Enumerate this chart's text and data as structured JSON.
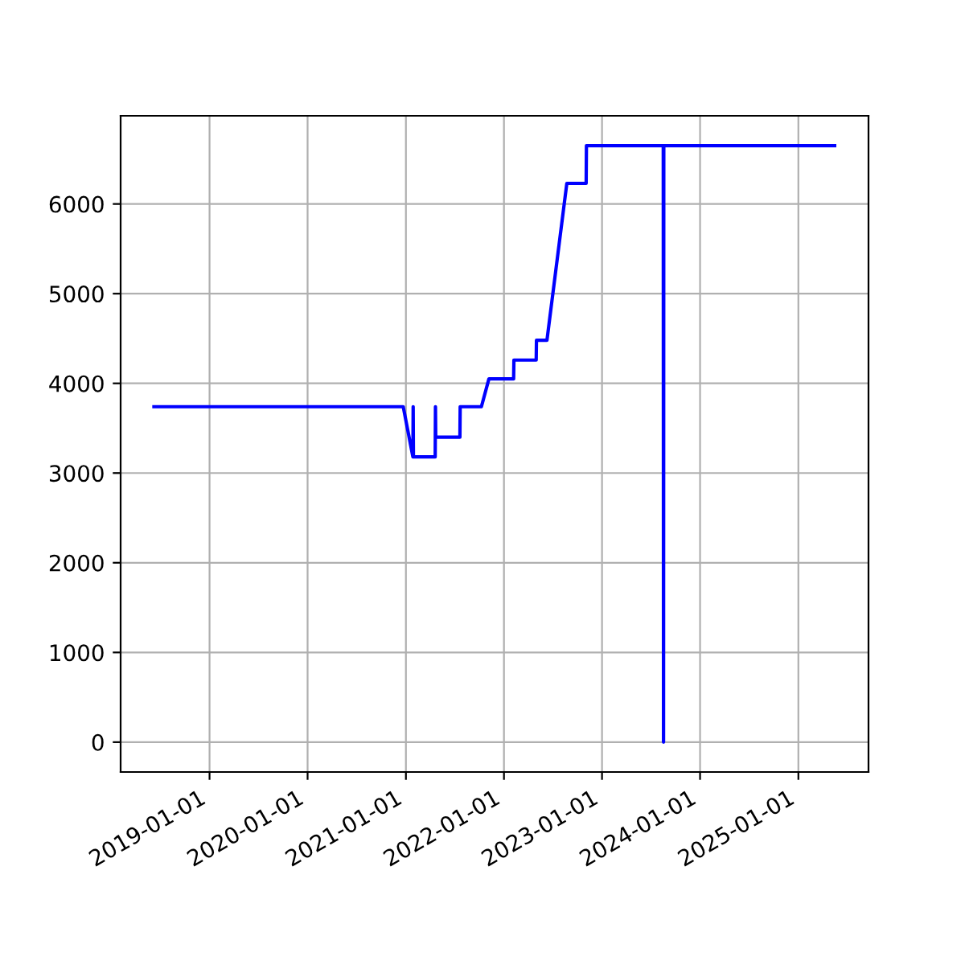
{
  "chart_data": {
    "type": "line",
    "x": [
      "2018-06-08",
      "2020-12-22",
      "2021-01-27",
      "2021-01-28",
      "2021-01-29",
      "2021-04-20",
      "2021-04-21",
      "2021-04-22",
      "2021-07-21",
      "2021-07-22",
      "2021-10-09",
      "2021-11-06",
      "2022-02-06",
      "2022-02-07",
      "2022-05-01",
      "2022-05-02",
      "2022-06-10",
      "2022-08-23",
      "2022-11-03",
      "2022-11-04",
      "2023-08-17",
      "2023-08-18",
      "2023-08-19",
      "2025-05-16"
    ],
    "series": [
      {
        "color": "#0000ff",
        "values": [
          3740,
          3740,
          3180,
          3740,
          3180,
          3180,
          3740,
          3400,
          3400,
          3740,
          3740,
          4050,
          4050,
          4260,
          4260,
          4480,
          4480,
          6230,
          6230,
          6650,
          6650,
          0,
          6650,
          6650
        ]
      }
    ],
    "xlim": [
      "2018-02-04",
      "2025-09-19"
    ],
    "xticks": [
      "2019-01-01",
      "2020-01-01",
      "2021-01-01",
      "2022-01-01",
      "2023-01-01",
      "2024-01-01",
      "2025-01-01"
    ],
    "ylim": [
      -333,
      6983
    ],
    "yticks": [
      0,
      1000,
      2000,
      3000,
      4000,
      5000,
      6000
    ],
    "grid": true
  }
}
